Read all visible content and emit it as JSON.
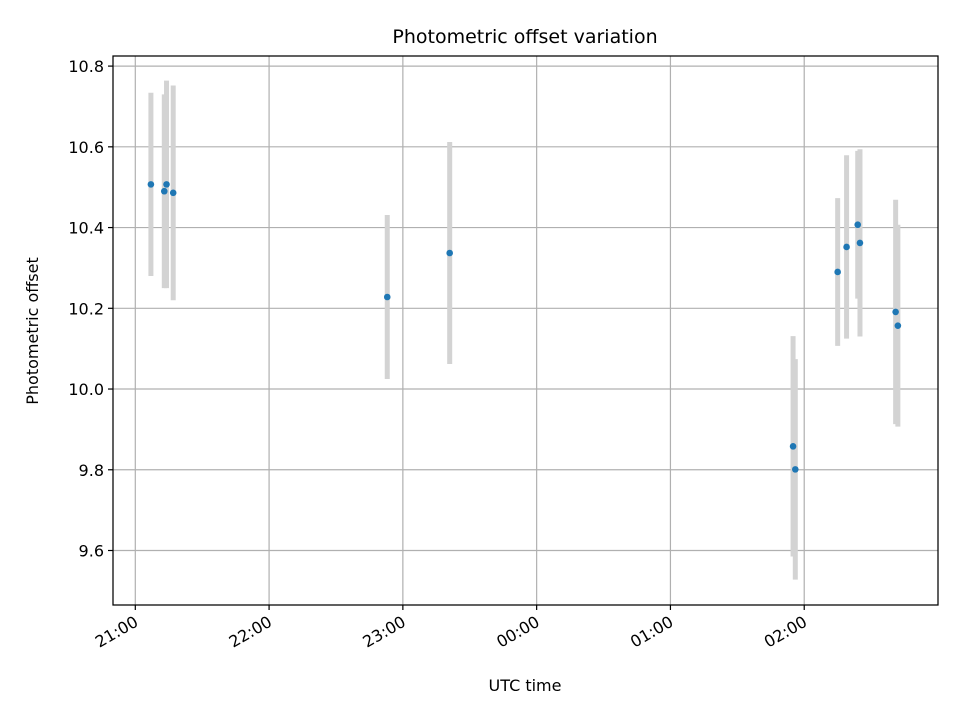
{
  "chart_data": {
    "type": "scatter",
    "title": "Photometric offset variation",
    "xlabel": "UTC time",
    "ylabel": "Photometric offset",
    "grid": true,
    "x_ticks": [
      "21:00",
      "22:00",
      "23:00",
      "00:00",
      "01:00",
      "02:00"
    ],
    "y_ticks": [
      "9.6",
      "9.8",
      "10.0",
      "10.2",
      "10.4",
      "10.6",
      "10.8"
    ],
    "xlim": [
      "20:50",
      "03:00"
    ],
    "ylim": [
      9.465,
      10.825
    ],
    "marker_color": "#1f77b4",
    "errorbar_color": "#d3d3d3",
    "points": [
      {
        "x": "21:07",
        "y": 10.507,
        "err": 0.227
      },
      {
        "x": "21:13",
        "y": 10.49,
        "err": 0.24
      },
      {
        "x": "21:14",
        "y": 10.507,
        "err": 0.257
      },
      {
        "x": "21:17",
        "y": 10.486,
        "err": 0.266
      },
      {
        "x": "22:53",
        "y": 10.228,
        "err": 0.203
      },
      {
        "x": "23:21",
        "y": 10.337,
        "err": 0.275
      },
      {
        "x": "01:55",
        "y": 9.858,
        "err": 0.273
      },
      {
        "x": "01:56",
        "y": 9.801,
        "err": 0.273
      },
      {
        "x": "02:15",
        "y": 10.29,
        "err": 0.183
      },
      {
        "x": "02:19",
        "y": 10.352,
        "err": 0.227
      },
      {
        "x": "02:24",
        "y": 10.407,
        "err": 0.183
      },
      {
        "x": "02:25",
        "y": 10.362,
        "err": 0.232
      },
      {
        "x": "02:41",
        "y": 10.191,
        "err": 0.278
      },
      {
        "x": "02:42",
        "y": 10.157,
        "err": 0.25
      }
    ]
  }
}
